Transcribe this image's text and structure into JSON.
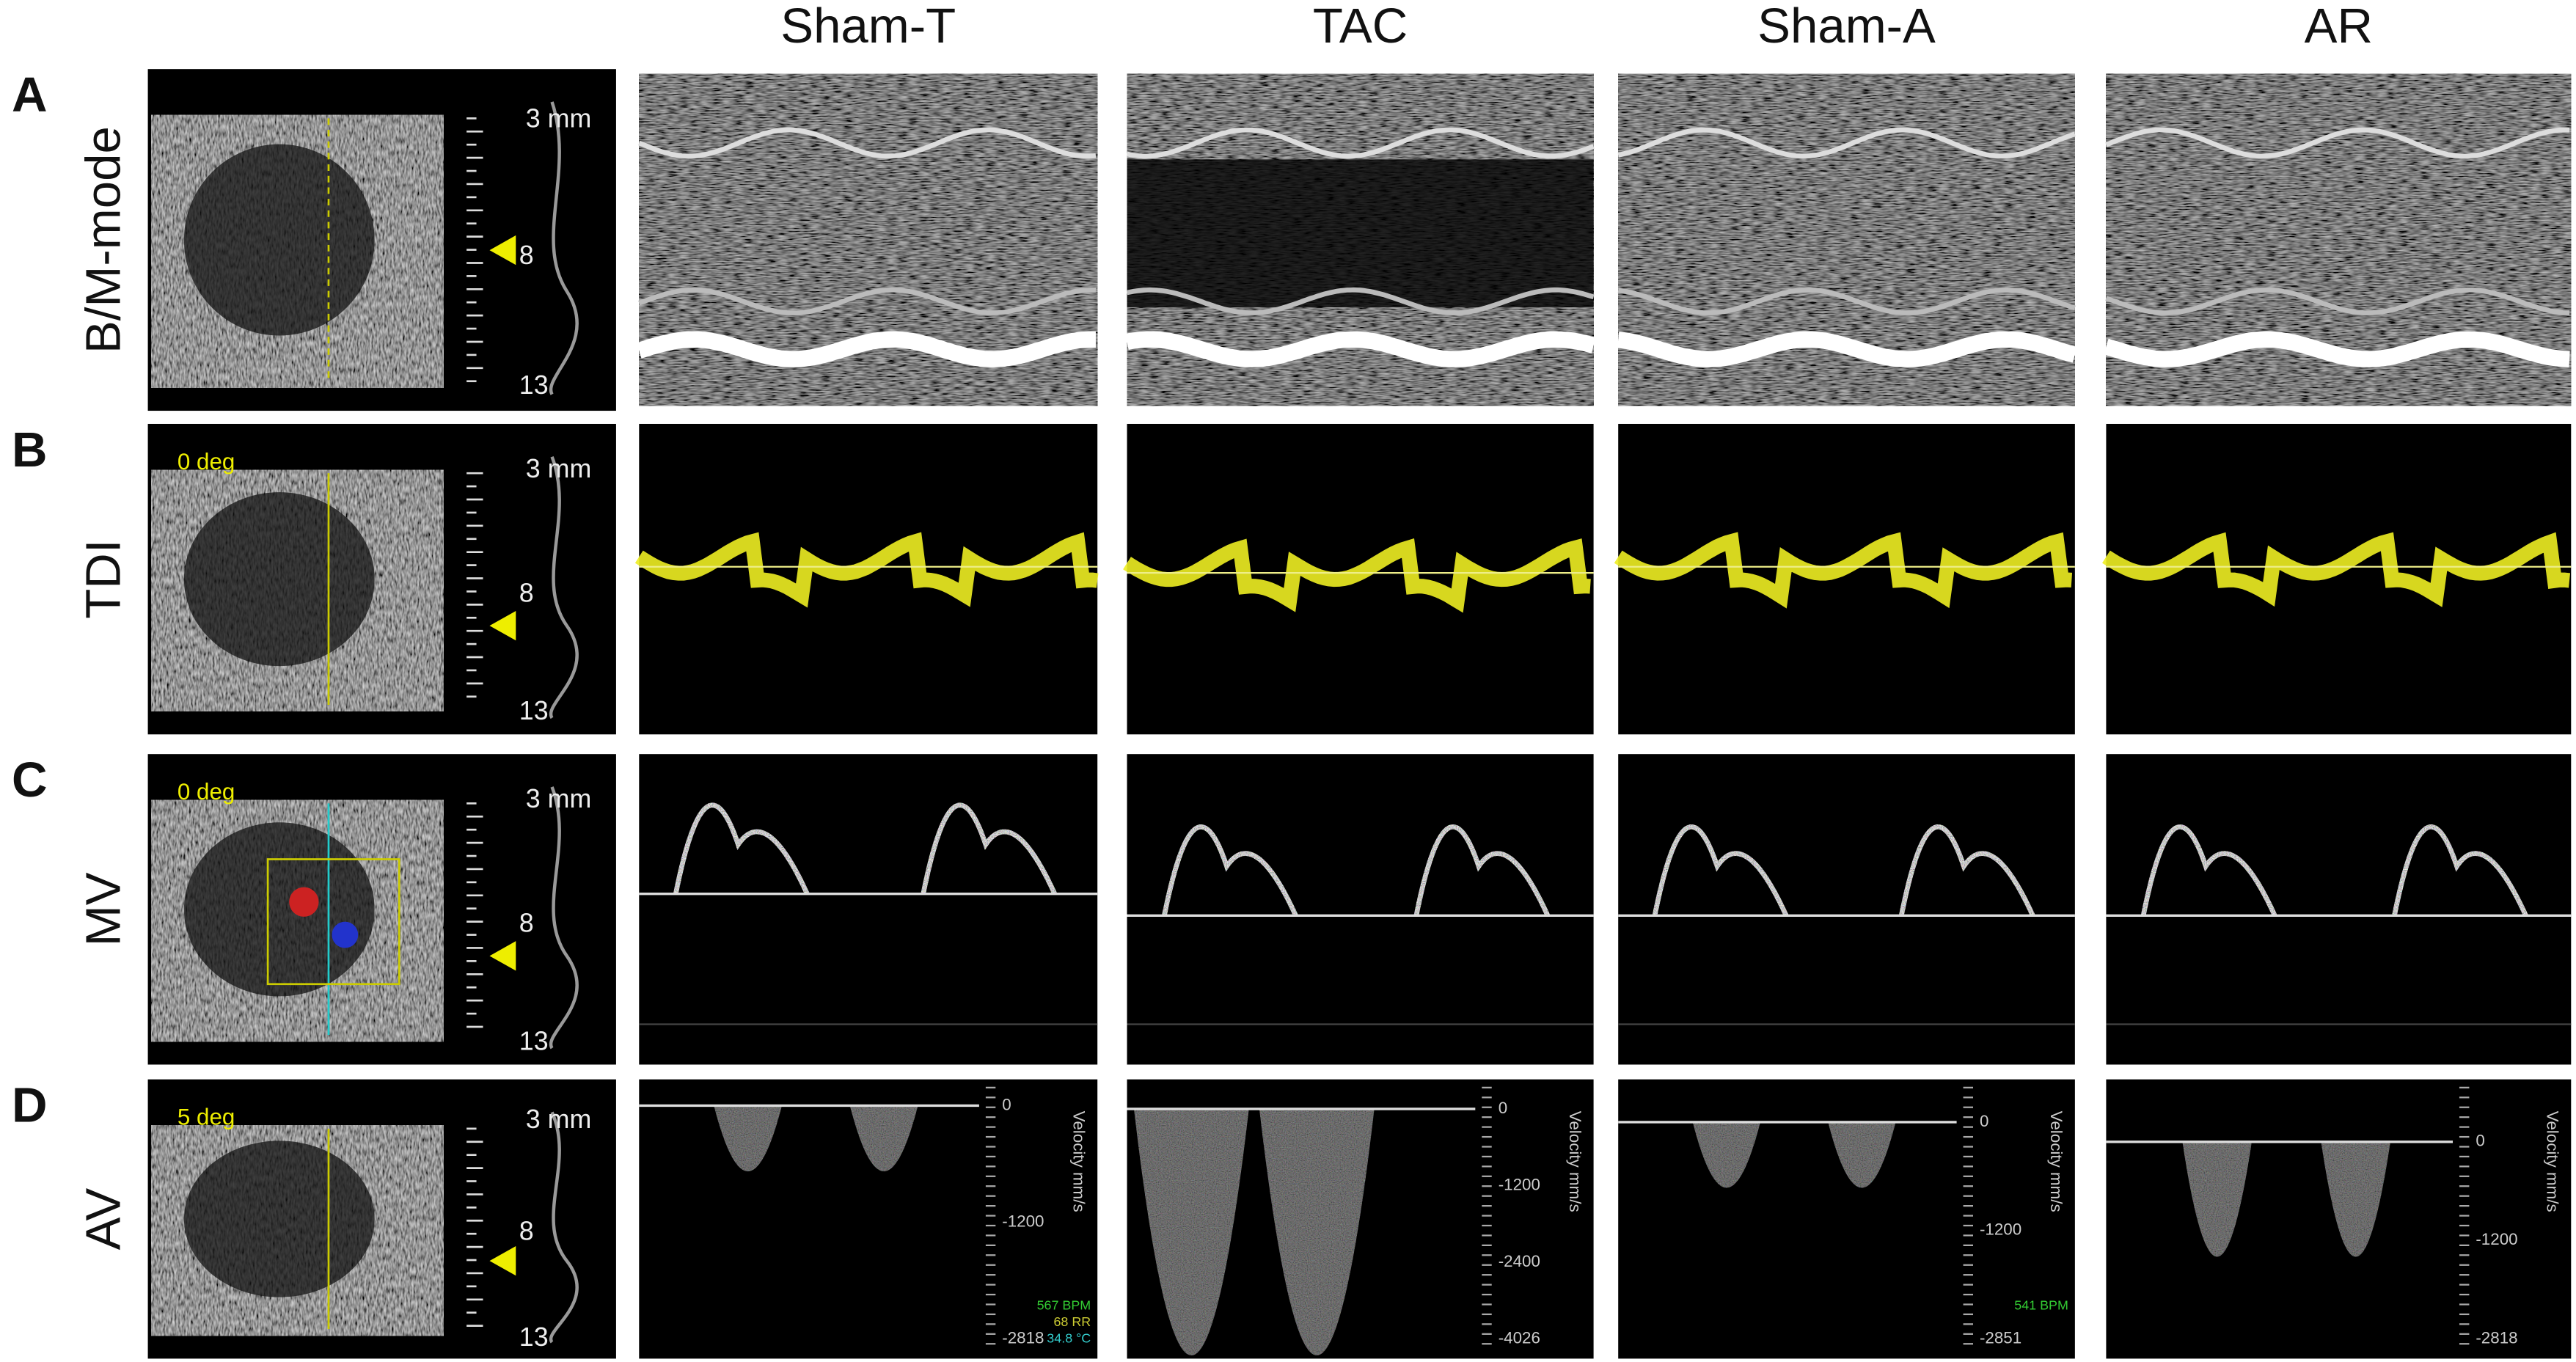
{
  "columns": [
    "Sham-T",
    "TAC",
    "Sham-A",
    "AR"
  ],
  "rows": [
    {
      "letter": "A",
      "label": "B/M-mode",
      "scale": {
        "top": "3 mm",
        "mid": "8",
        "bottom": "13"
      }
    },
    {
      "letter": "B",
      "label": "TDI",
      "angle": "0 deg",
      "scale": {
        "top": "3 mm",
        "mid": "8",
        "bottom": "13"
      }
    },
    {
      "letter": "C",
      "label": "MV",
      "angle": "0 deg",
      "scale": {
        "top": "3 mm",
        "mid": "8",
        "bottom": "13"
      }
    },
    {
      "letter": "D",
      "label": "AV",
      "angle": "5 deg",
      "scale": {
        "top": "3 mm",
        "mid": "8",
        "bottom": "13"
      },
      "panels": [
        {
          "ticks": [
            "0",
            "-1200",
            "-2818"
          ],
          "axis": "Velocity mm/s",
          "readout": [
            "567 BPM",
            "68 RR",
            "34.8 °C"
          ]
        },
        {
          "ticks": [
            "0",
            "-1200",
            "-2400",
            "-4026"
          ],
          "axis": "Velocity mm/s"
        },
        {
          "ticks": [
            "0",
            "-1200",
            "-2851"
          ],
          "axis": "Velocity mm/s",
          "readout": [
            "541 BPM"
          ]
        },
        {
          "ticks": [
            "0",
            "-1200",
            "-2818"
          ],
          "axis": "Velocity mm/s"
        }
      ]
    }
  ]
}
